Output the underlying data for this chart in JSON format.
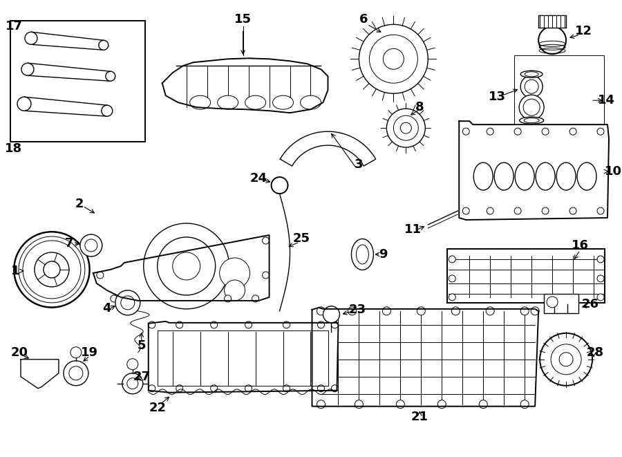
{
  "background_color": "#ffffff",
  "line_color": "#000000",
  "label_color": "#000000",
  "label_fontsize": 11,
  "label_fontweight": "bold",
  "fig_w": 9.0,
  "fig_h": 6.61,
  "dpi": 100
}
